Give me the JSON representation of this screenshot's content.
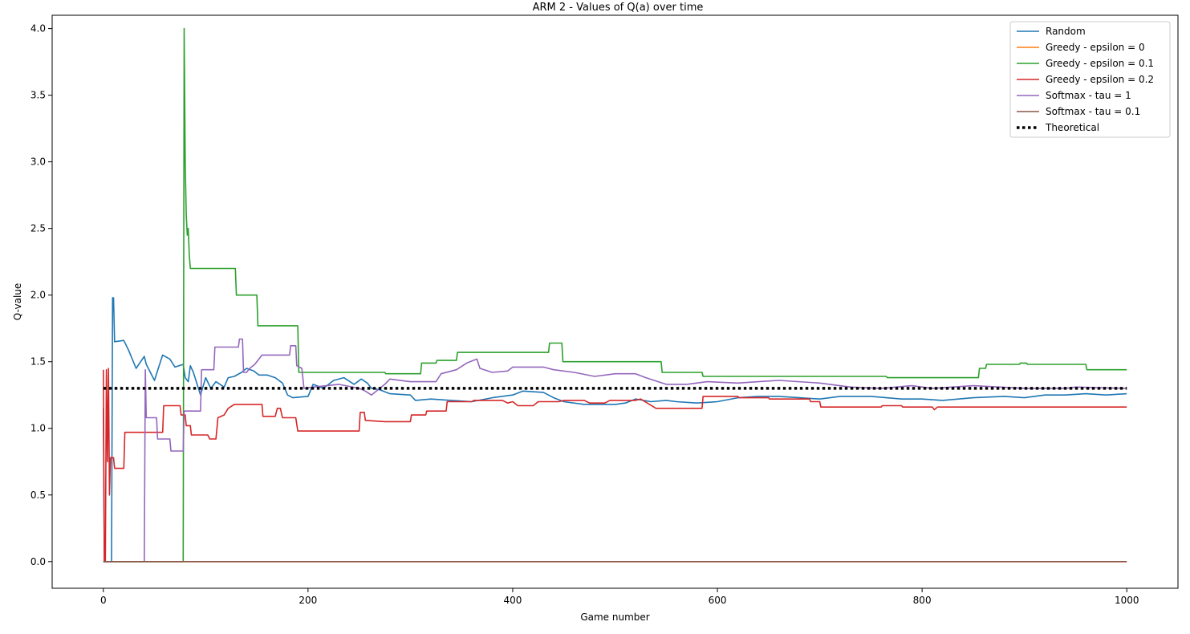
{
  "chart_data": {
    "type": "line",
    "title": "ARM 2 - Values of Q(a) over time",
    "xlabel": "Game number",
    "ylabel": "Q-value",
    "xlim": [
      -50,
      1050
    ],
    "ylim": [
      -0.2,
      4.1
    ],
    "xticks": [
      0,
      200,
      400,
      600,
      800,
      1000
    ],
    "xtick_labels": [
      "0",
      "200",
      "400",
      "600",
      "800",
      "1000"
    ],
    "yticks": [
      0.0,
      0.5,
      1.0,
      1.5,
      2.0,
      2.5,
      3.0,
      3.5,
      4.0
    ],
    "ytick_labels": [
      "0.0",
      "0.5",
      "1.0",
      "1.5",
      "2.0",
      "2.5",
      "3.0",
      "3.5",
      "4.0"
    ],
    "grid": false,
    "legend_position": "top-right",
    "series": [
      {
        "name": "Random",
        "color": "#1f77b4",
        "style": "solid",
        "points": [
          [
            0,
            1.15
          ],
          [
            1,
            0
          ],
          [
            8,
            0
          ],
          [
            9,
            1.98
          ],
          [
            10,
            1.98
          ],
          [
            11,
            1.65
          ],
          [
            20,
            1.66
          ],
          [
            25,
            1.58
          ],
          [
            32,
            1.45
          ],
          [
            40,
            1.54
          ],
          [
            42,
            1.48
          ],
          [
            50,
            1.36
          ],
          [
            55,
            1.48
          ],
          [
            58,
            1.55
          ],
          [
            65,
            1.52
          ],
          [
            70,
            1.46
          ],
          [
            78,
            1.48
          ],
          [
            80,
            1.38
          ],
          [
            83,
            1.35
          ],
          [
            85,
            1.47
          ],
          [
            88,
            1.42
          ],
          [
            95,
            1.25
          ],
          [
            100,
            1.38
          ],
          [
            105,
            1.3
          ],
          [
            110,
            1.35
          ],
          [
            118,
            1.31
          ],
          [
            122,
            1.38
          ],
          [
            128,
            1.39
          ],
          [
            135,
            1.42
          ],
          [
            140,
            1.45
          ],
          [
            147,
            1.43
          ],
          [
            152,
            1.4
          ],
          [
            160,
            1.4
          ],
          [
            168,
            1.38
          ],
          [
            175,
            1.34
          ],
          [
            180,
            1.25
          ],
          [
            185,
            1.23
          ],
          [
            200,
            1.24
          ],
          [
            205,
            1.33
          ],
          [
            215,
            1.3
          ],
          [
            225,
            1.36
          ],
          [
            235,
            1.38
          ],
          [
            245,
            1.33
          ],
          [
            252,
            1.37
          ],
          [
            258,
            1.34
          ],
          [
            262,
            1.3
          ],
          [
            270,
            1.29
          ],
          [
            280,
            1.26
          ],
          [
            300,
            1.25
          ],
          [
            305,
            1.21
          ],
          [
            320,
            1.22
          ],
          [
            340,
            1.21
          ],
          [
            360,
            1.2
          ],
          [
            380,
            1.23
          ],
          [
            400,
            1.25
          ],
          [
            410,
            1.28
          ],
          [
            430,
            1.27
          ],
          [
            440,
            1.23
          ],
          [
            450,
            1.2
          ],
          [
            470,
            1.18
          ],
          [
            500,
            1.18
          ],
          [
            510,
            1.19
          ],
          [
            520,
            1.22
          ],
          [
            535,
            1.2
          ],
          [
            550,
            1.21
          ],
          [
            560,
            1.2
          ],
          [
            580,
            1.19
          ],
          [
            600,
            1.2
          ],
          [
            620,
            1.23
          ],
          [
            640,
            1.24
          ],
          [
            660,
            1.24
          ],
          [
            680,
            1.23
          ],
          [
            700,
            1.22
          ],
          [
            720,
            1.24
          ],
          [
            750,
            1.24
          ],
          [
            780,
            1.22
          ],
          [
            800,
            1.22
          ],
          [
            820,
            1.21
          ],
          [
            850,
            1.23
          ],
          [
            880,
            1.24
          ],
          [
            900,
            1.23
          ],
          [
            920,
            1.25
          ],
          [
            940,
            1.25
          ],
          [
            960,
            1.26
          ],
          [
            980,
            1.25
          ],
          [
            1000,
            1.26
          ]
        ]
      },
      {
        "name": "Greedy - epsilon = 0",
        "color": "#ff7f0e",
        "style": "solid",
        "points": [
          [
            0,
            0
          ],
          [
            1000,
            0
          ]
        ]
      },
      {
        "name": "Greedy - epsilon = 0.1",
        "color": "#2ca02c",
        "style": "solid",
        "points": [
          [
            0,
            0
          ],
          [
            78,
            0
          ],
          [
            79,
            4.0
          ],
          [
            80,
            3.0
          ],
          [
            81,
            2.6
          ],
          [
            82,
            2.45
          ],
          [
            83,
            2.5
          ],
          [
            84,
            2.3
          ],
          [
            85,
            2.2
          ],
          [
            129,
            2.2
          ],
          [
            130,
            2.0
          ],
          [
            150,
            2.0
          ],
          [
            151,
            1.77
          ],
          [
            190,
            1.77
          ],
          [
            191,
            1.42
          ],
          [
            275,
            1.42
          ],
          [
            276,
            1.41
          ],
          [
            310,
            1.41
          ],
          [
            311,
            1.49
          ],
          [
            325,
            1.49
          ],
          [
            326,
            1.51
          ],
          [
            345,
            1.51
          ],
          [
            346,
            1.57
          ],
          [
            435,
            1.57
          ],
          [
            436,
            1.64
          ],
          [
            448,
            1.64
          ],
          [
            449,
            1.5
          ],
          [
            545,
            1.5
          ],
          [
            546,
            1.42
          ],
          [
            585,
            1.42
          ],
          [
            586,
            1.39
          ],
          [
            765,
            1.39
          ],
          [
            766,
            1.38
          ],
          [
            855,
            1.38
          ],
          [
            856,
            1.45
          ],
          [
            862,
            1.45
          ],
          [
            863,
            1.48
          ],
          [
            895,
            1.48
          ],
          [
            896,
            1.49
          ],
          [
            902,
            1.49
          ],
          [
            903,
            1.48
          ],
          [
            960,
            1.48
          ],
          [
            961,
            1.44
          ],
          [
            1000,
            1.44
          ]
        ]
      },
      {
        "name": "Greedy - epsilon = 0.2",
        "color": "#d62728",
        "style": "solid",
        "points": [
          [
            0,
            1.44
          ],
          [
            1,
            0
          ],
          [
            2,
            0
          ],
          [
            3,
            1.44
          ],
          [
            4,
            0.75
          ],
          [
            5,
            1.45
          ],
          [
            6,
            0.5
          ],
          [
            7,
            0.78
          ],
          [
            10,
            0.78
          ],
          [
            11,
            0.7
          ],
          [
            20,
            0.7
          ],
          [
            21,
            0.97
          ],
          [
            58,
            0.97
          ],
          [
            59,
            1.17
          ],
          [
            75,
            1.17
          ],
          [
            76,
            1.1
          ],
          [
            80,
            1.1
          ],
          [
            81,
            1.02
          ],
          [
            85,
            1.02
          ],
          [
            86,
            0.95
          ],
          [
            102,
            0.95
          ],
          [
            104,
            0.92
          ],
          [
            110,
            0.92
          ],
          [
            112,
            1.08
          ],
          [
            118,
            1.1
          ],
          [
            122,
            1.15
          ],
          [
            128,
            1.18
          ],
          [
            155,
            1.18
          ],
          [
            156,
            1.09
          ],
          [
            168,
            1.09
          ],
          [
            170,
            1.15
          ],
          [
            173,
            1.15
          ],
          [
            175,
            1.08
          ],
          [
            188,
            1.08
          ],
          [
            190,
            0.98
          ],
          [
            250,
            0.98
          ],
          [
            251,
            1.12
          ],
          [
            255,
            1.12
          ],
          [
            256,
            1.06
          ],
          [
            275,
            1.05
          ],
          [
            300,
            1.05
          ],
          [
            301,
            1.1
          ],
          [
            315,
            1.1
          ],
          [
            316,
            1.13
          ],
          [
            335,
            1.13
          ],
          [
            336,
            1.2
          ],
          [
            360,
            1.2
          ],
          [
            362,
            1.21
          ],
          [
            390,
            1.21
          ],
          [
            395,
            1.19
          ],
          [
            400,
            1.2
          ],
          [
            405,
            1.17
          ],
          [
            420,
            1.17
          ],
          [
            425,
            1.2
          ],
          [
            445,
            1.2
          ],
          [
            450,
            1.21
          ],
          [
            470,
            1.21
          ],
          [
            475,
            1.19
          ],
          [
            490,
            1.19
          ],
          [
            495,
            1.21
          ],
          [
            520,
            1.21
          ],
          [
            525,
            1.22
          ],
          [
            540,
            1.15
          ],
          [
            585,
            1.15
          ],
          [
            586,
            1.24
          ],
          [
            620,
            1.24
          ],
          [
            621,
            1.23
          ],
          [
            650,
            1.23
          ],
          [
            651,
            1.22
          ],
          [
            690,
            1.22
          ],
          [
            691,
            1.2
          ],
          [
            700,
            1.2
          ],
          [
            701,
            1.16
          ],
          [
            760,
            1.16
          ],
          [
            761,
            1.17
          ],
          [
            780,
            1.17
          ],
          [
            781,
            1.16
          ],
          [
            810,
            1.16
          ],
          [
            812,
            1.14
          ],
          [
            815,
            1.16
          ],
          [
            1000,
            1.16
          ]
        ]
      },
      {
        "name": "Softmax - tau = 1",
        "color": "#9467bd",
        "style": "solid",
        "points": [
          [
            0,
            0
          ],
          [
            40,
            0
          ],
          [
            41,
            1.44
          ],
          [
            42,
            1.08
          ],
          [
            52,
            1.08
          ],
          [
            53,
            0.92
          ],
          [
            65,
            0.92
          ],
          [
            66,
            0.83
          ],
          [
            78,
            0.83
          ],
          [
            79,
            1.13
          ],
          [
            95,
            1.13
          ],
          [
            96,
            1.44
          ],
          [
            108,
            1.44
          ],
          [
            109,
            1.61
          ],
          [
            132,
            1.61
          ],
          [
            133,
            1.67
          ],
          [
            136,
            1.67
          ],
          [
            137,
            1.42
          ],
          [
            140,
            1.42
          ],
          [
            143,
            1.45
          ],
          [
            148,
            1.48
          ],
          [
            155,
            1.55
          ],
          [
            182,
            1.55
          ],
          [
            183,
            1.62
          ],
          [
            188,
            1.62
          ],
          [
            189,
            1.47
          ],
          [
            194,
            1.45
          ],
          [
            196,
            1.3
          ],
          [
            205,
            1.31
          ],
          [
            230,
            1.33
          ],
          [
            250,
            1.3
          ],
          [
            256,
            1.28
          ],
          [
            262,
            1.25
          ],
          [
            275,
            1.33
          ],
          [
            280,
            1.37
          ],
          [
            300,
            1.35
          ],
          [
            325,
            1.35
          ],
          [
            330,
            1.41
          ],
          [
            345,
            1.44
          ],
          [
            355,
            1.49
          ],
          [
            365,
            1.52
          ],
          [
            368,
            1.45
          ],
          [
            380,
            1.42
          ],
          [
            395,
            1.43
          ],
          [
            400,
            1.46
          ],
          [
            430,
            1.46
          ],
          [
            440,
            1.44
          ],
          [
            460,
            1.42
          ],
          [
            480,
            1.39
          ],
          [
            500,
            1.41
          ],
          [
            520,
            1.41
          ],
          [
            530,
            1.38
          ],
          [
            550,
            1.33
          ],
          [
            570,
            1.33
          ],
          [
            590,
            1.35
          ],
          [
            620,
            1.34
          ],
          [
            640,
            1.35
          ],
          [
            660,
            1.36
          ],
          [
            700,
            1.34
          ],
          [
            730,
            1.31
          ],
          [
            760,
            1.3
          ],
          [
            790,
            1.32
          ],
          [
            810,
            1.3
          ],
          [
            850,
            1.32
          ],
          [
            900,
            1.3
          ],
          [
            940,
            1.3
          ],
          [
            950,
            1.31
          ],
          [
            1000,
            1.3
          ]
        ]
      },
      {
        "name": "Softmax - tau = 0.1",
        "color": "#8c564b",
        "style": "solid",
        "points": [
          [
            0,
            0
          ],
          [
            1000,
            0
          ]
        ]
      },
      {
        "name": "Theoretical",
        "color": "#000000",
        "style": "dotted",
        "points": [
          [
            0,
            1.3
          ],
          [
            1000,
            1.3
          ]
        ]
      }
    ]
  }
}
